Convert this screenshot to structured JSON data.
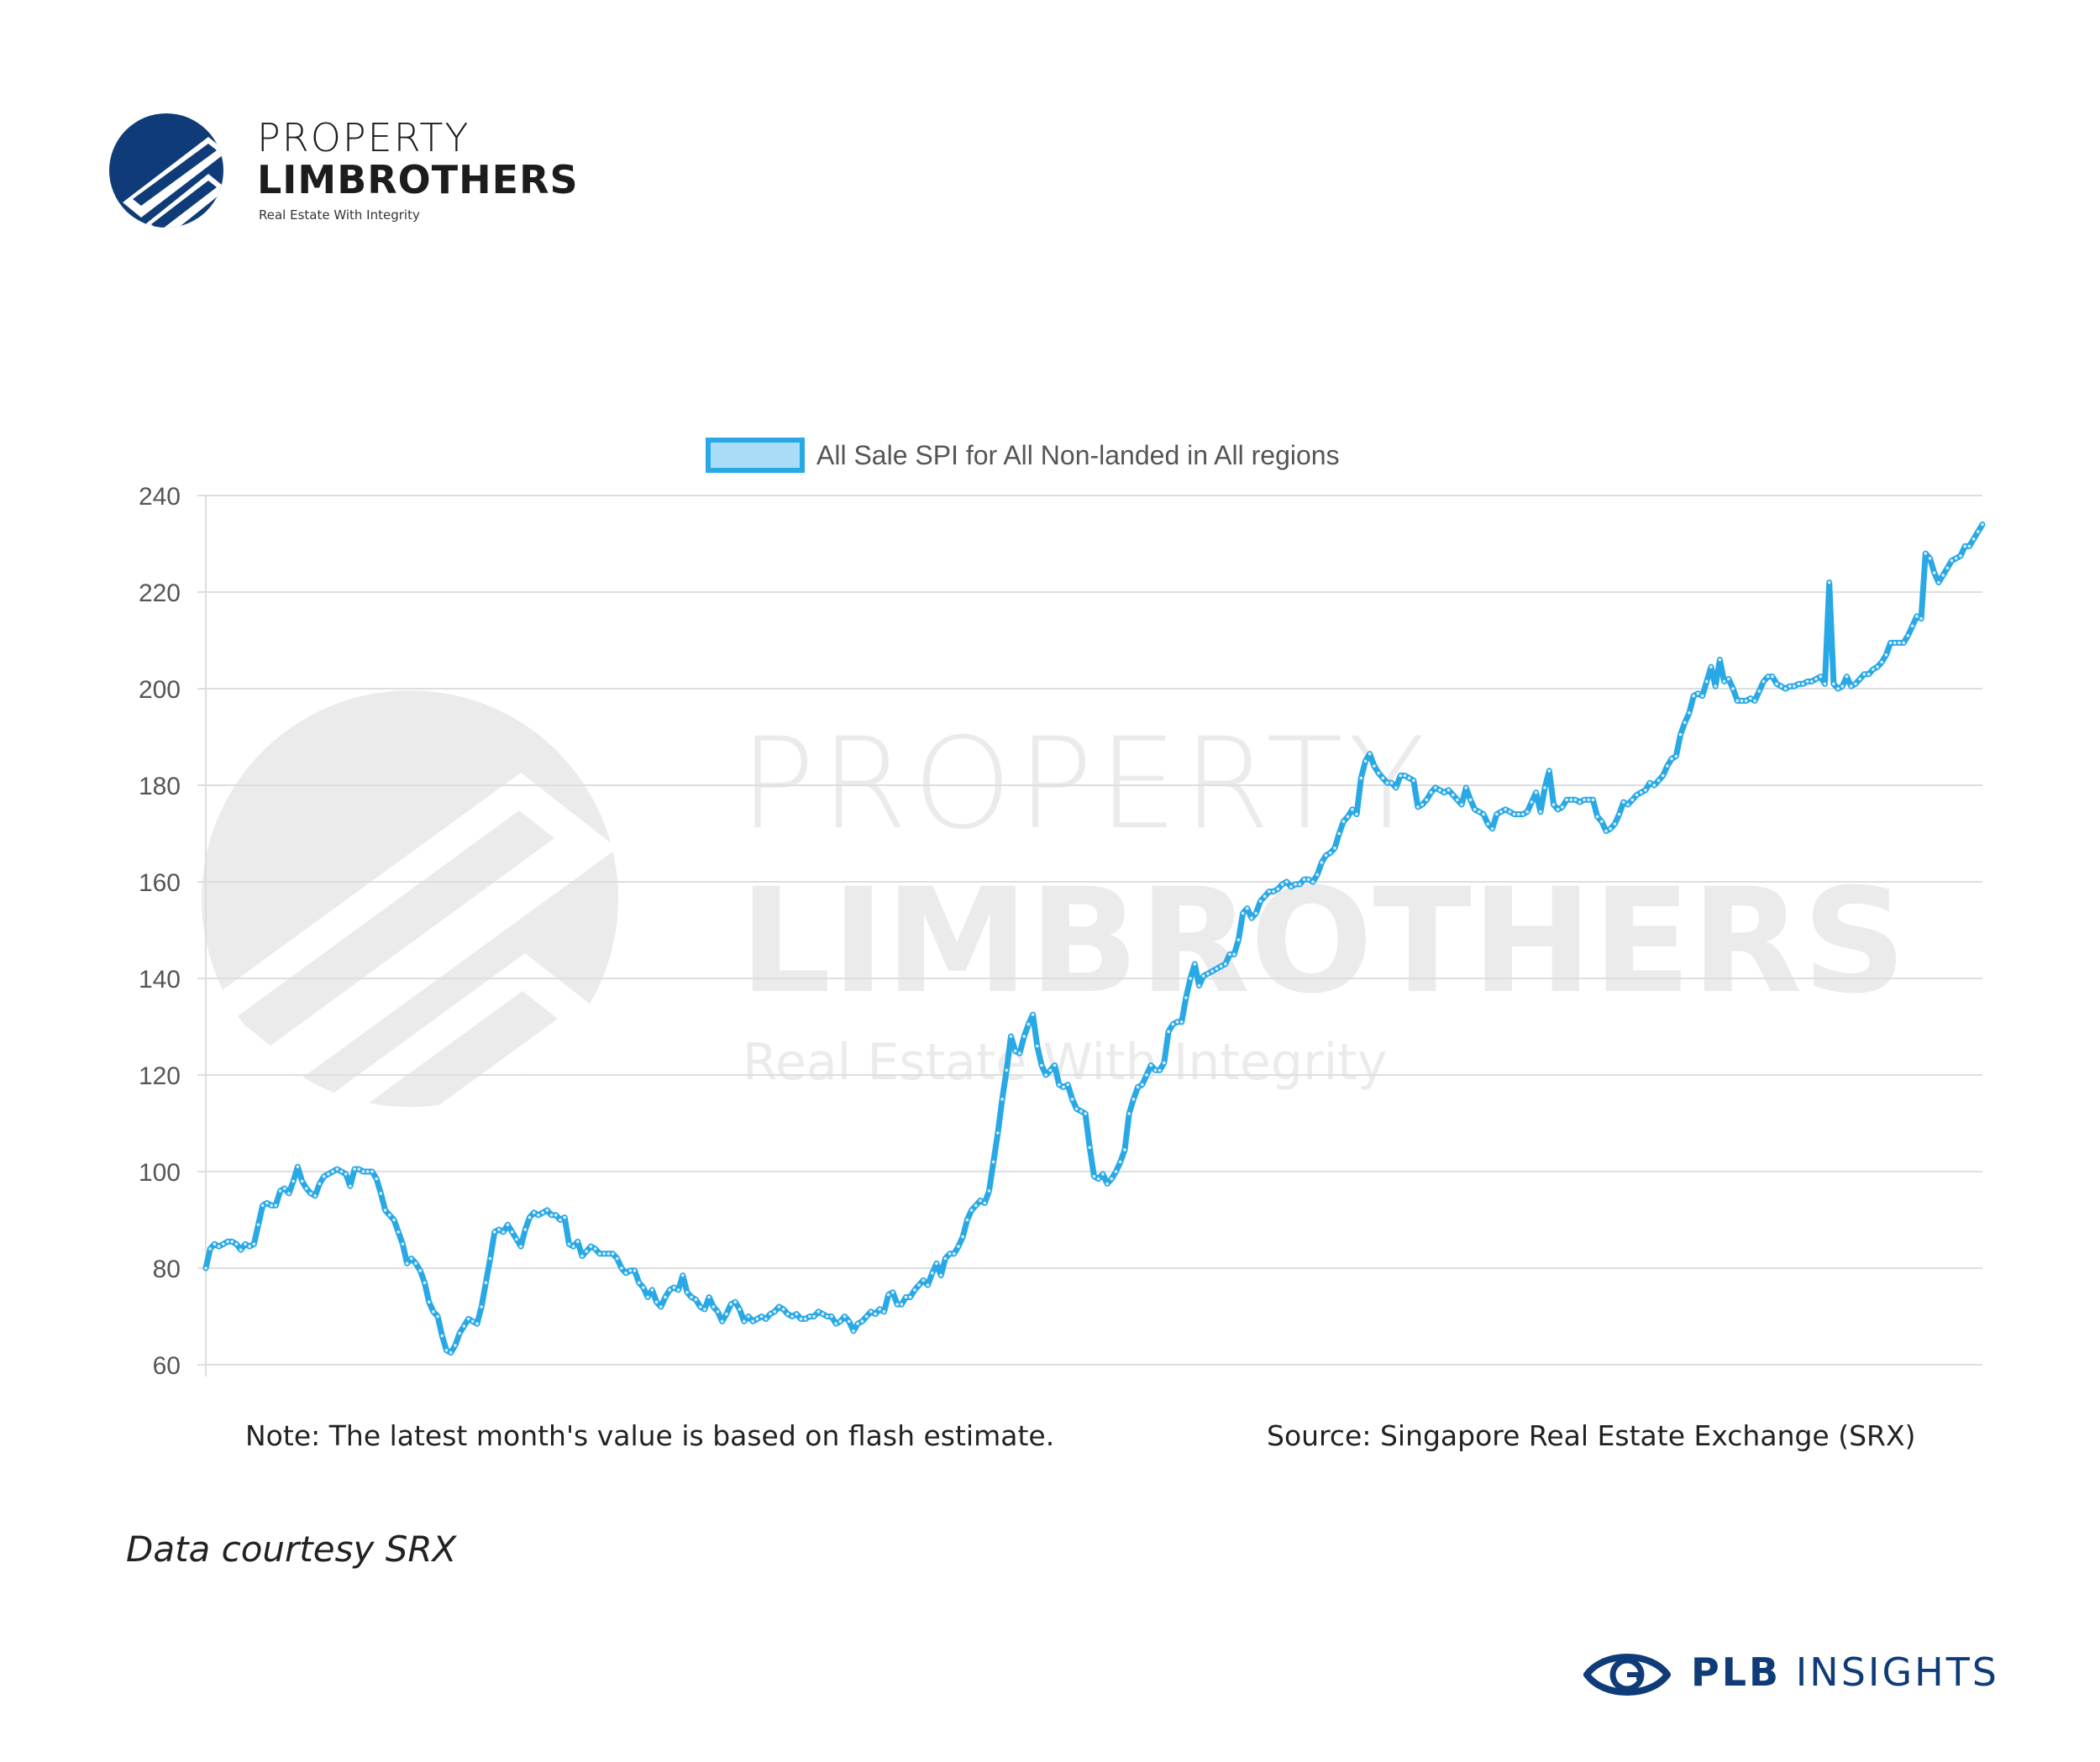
{
  "brand": {
    "name_line1": "PROPERTY",
    "name_line2": "LIMBROTHERS",
    "tagline": "Real Estate With Integrity",
    "watermark_line1": "PROPERTY",
    "watermark_line2": "LIMBROTHERS",
    "watermark_tagline": "Real Estate With Integrity",
    "color": "#0f3c78"
  },
  "chart_data": {
    "type": "line",
    "legend": "All Sale SPI for All Non-landed in All regions",
    "legend_position": "top-center",
    "line_color": "#29a8e6",
    "grid": true,
    "ylim": [
      60,
      240
    ],
    "yticks": [
      60,
      80,
      100,
      120,
      140,
      160,
      180,
      200,
      220,
      240
    ],
    "series": [
      {
        "name": "All Sale SPI for All Non-landed in All regions",
        "values": [
          80,
          84,
          85,
          84.5,
          85,
          85.5,
          85.5,
          85,
          83.8,
          85,
          84.5,
          85,
          89,
          93,
          93.5,
          93,
          93,
          96,
          96.5,
          95.5,
          98,
          101,
          98,
          96.5,
          95.5,
          95,
          97.5,
          99,
          99.5,
          100,
          100.5,
          100,
          99.5,
          97,
          100.5,
          100.5,
          100,
          100,
          100,
          98.5,
          95.5,
          92,
          91,
          90,
          87.5,
          85,
          81,
          82,
          81,
          79.5,
          77,
          73,
          71,
          70,
          66,
          63,
          62.5,
          64,
          66.5,
          68,
          69.5,
          69,
          68.5,
          72,
          77,
          82,
          87.5,
          88,
          87.5,
          89,
          87.5,
          86,
          84.5,
          88,
          90.5,
          91.5,
          91,
          91.5,
          92,
          91,
          91,
          90,
          90.5,
          85,
          84.5,
          85.5,
          82.5,
          83.5,
          84.5,
          84,
          83,
          83,
          83,
          83,
          82,
          80,
          79,
          79.5,
          79.5,
          77,
          76,
          74,
          75.5,
          73,
          72,
          74,
          75.5,
          76,
          75.5,
          78.5,
          75,
          74,
          73.5,
          72,
          71.5,
          74,
          72,
          71,
          69,
          70.5,
          72.5,
          73,
          71.5,
          69,
          70,
          69,
          69.5,
          70,
          69.5,
          70.5,
          71,
          72,
          71.5,
          70.5,
          70,
          70.5,
          69.5,
          69.5,
          70,
          70,
          71,
          70.5,
          70,
          70,
          68.5,
          69,
          70,
          69,
          67,
          68.5,
          69,
          70,
          71,
          70.5,
          71.5,
          71,
          74.5,
          75,
          72.5,
          72.5,
          74,
          74,
          75.5,
          76.5,
          77.5,
          76.5,
          79,
          81,
          78.5,
          82,
          83,
          83,
          84.5,
          86.5,
          90,
          92,
          93,
          94,
          93.5,
          96,
          102,
          108,
          115,
          121,
          128,
          125,
          124.5,
          128,
          130.5,
          132.5,
          126,
          122,
          120,
          121,
          122,
          118,
          117.5,
          118,
          115,
          113,
          112.5,
          112,
          105,
          99,
          98.5,
          99.5,
          97.5,
          98.5,
          100,
          102,
          104.5,
          112,
          115,
          117.5,
          118,
          120,
          122,
          121,
          121,
          122.5,
          129,
          130.5,
          131,
          131,
          136,
          140,
          143,
          138.5,
          140.5,
          141,
          141.5,
          142,
          142.5,
          143,
          145,
          145,
          148,
          153.5,
          154.5,
          152.5,
          153.5,
          156,
          157,
          158,
          158,
          158.5,
          159.5,
          160,
          159,
          159.5,
          159.5,
          160.5,
          160.5,
          160,
          161.5,
          164,
          165.5,
          166,
          167,
          170,
          172.5,
          173.5,
          175,
          174,
          181.5,
          185,
          186.5,
          184,
          182.5,
          181.5,
          180.5,
          180.5,
          179.5,
          182,
          182,
          181.5,
          181,
          175.5,
          176,
          177,
          178.5,
          179.5,
          179,
          178.5,
          179,
          178,
          177,
          176,
          179.5,
          177,
          175,
          174.5,
          174,
          172,
          171,
          174,
          174.5,
          175,
          174.5,
          174,
          174,
          174,
          174.5,
          176.5,
          178.5,
          174.5,
          179.5,
          183,
          176,
          175,
          175.5,
          177,
          177,
          177,
          176.5,
          177,
          177,
          177,
          173.5,
          172.5,
          170.5,
          171,
          172,
          174,
          176.5,
          176,
          177,
          178,
          178.5,
          179,
          180.5,
          180,
          181,
          182,
          184,
          185.5,
          186,
          190.5,
          193,
          195,
          198.5,
          199,
          198.5,
          201.5,
          204.5,
          200.5,
          206,
          201.5,
          202,
          200,
          197.5,
          197.5,
          197.5,
          198,
          197.5,
          199.5,
          201.5,
          202.5,
          202.5,
          201,
          200.5,
          200,
          200.5,
          200.5,
          201,
          201,
          201.5,
          201.5,
          202,
          202.5,
          201,
          222,
          201,
          200,
          200.5,
          202.5,
          200.5,
          201,
          202,
          203,
          203,
          204,
          204.5,
          205.5,
          207,
          209.5,
          209.5,
          209.5,
          209.5,
          211,
          213,
          215,
          214.5,
          228,
          227,
          224,
          222,
          223.5,
          225,
          226.5,
          227,
          227.5,
          229.5,
          229.5,
          231,
          232.5,
          234
        ]
      }
    ]
  },
  "notes": {
    "left_bold": "Note:",
    "left_rest": " The latest month's value is based on flash estimate.",
    "right": "Source: Singapore Real Estate Exchange (SRX)"
  },
  "courtesy": "Data courtesy SRX",
  "footer": {
    "icon": "eye-icon",
    "brand_bold": "PLB",
    "brand_rest": " INSIGHTS"
  }
}
